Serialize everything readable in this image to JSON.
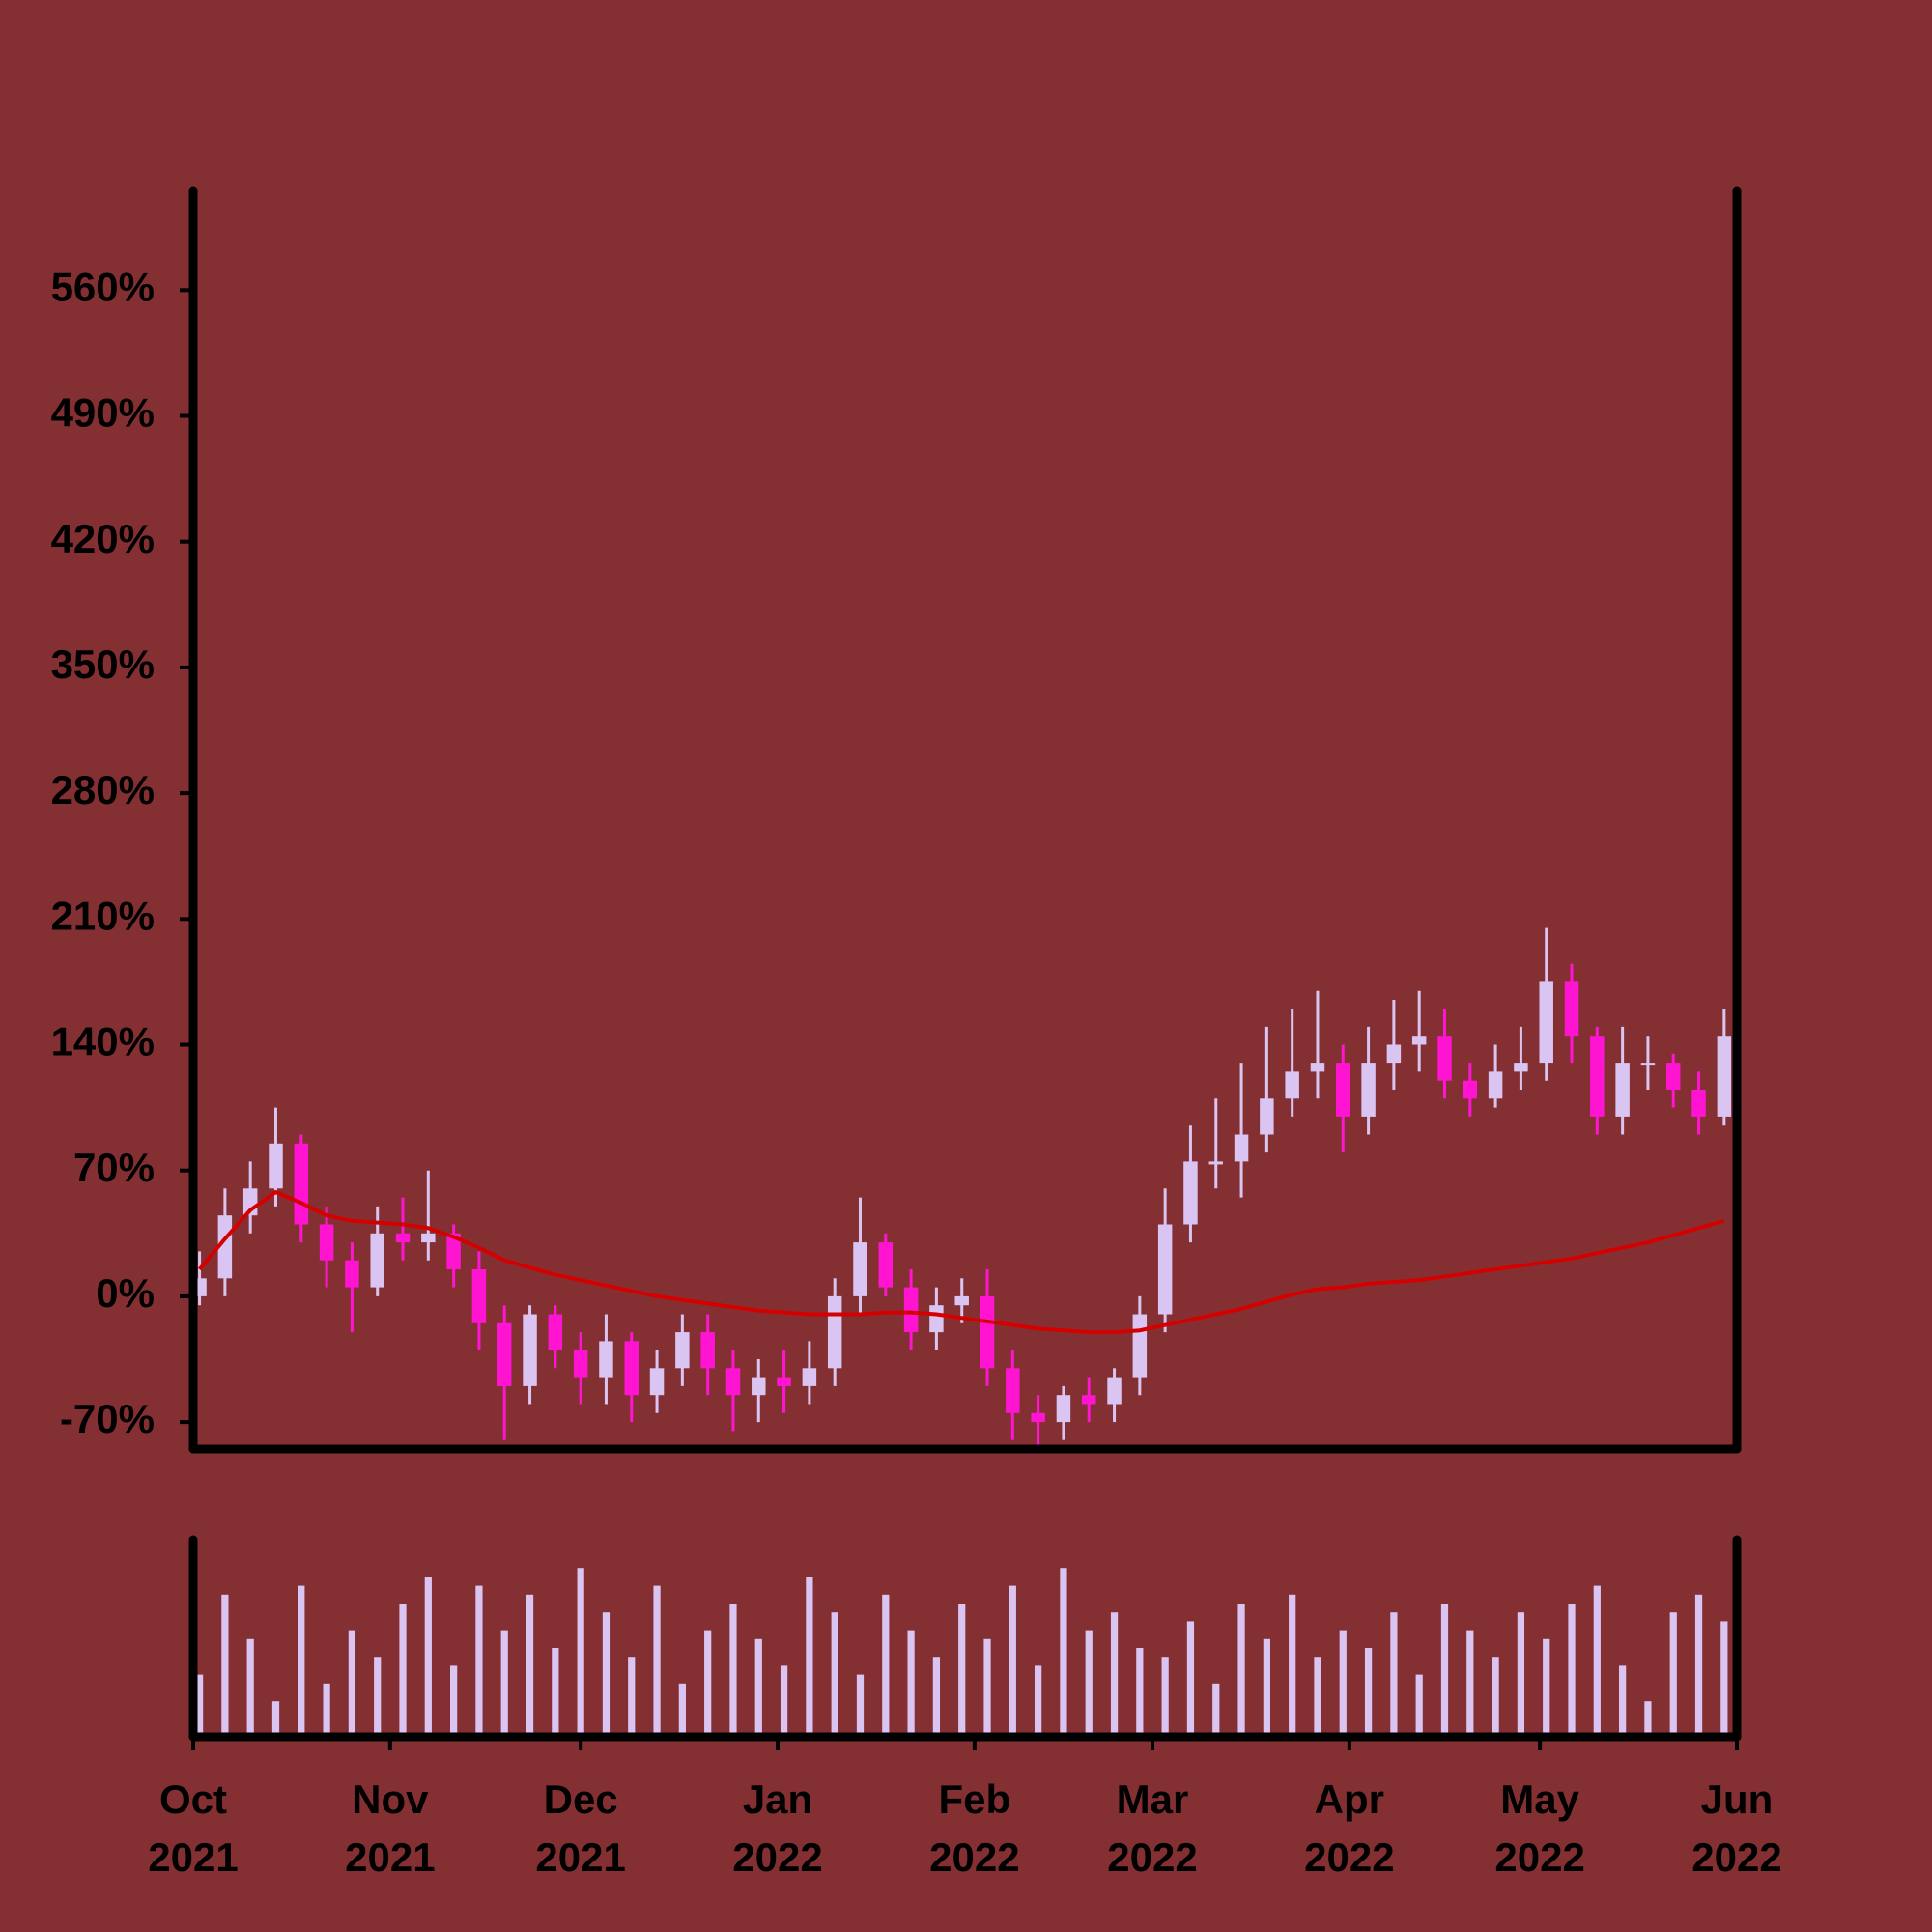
{
  "chart_data": {
    "type": "candlestick",
    "x": [
      "2021-10-02",
      "2021-10-06",
      "2021-10-10",
      "2021-10-14",
      "2021-10-18",
      "2021-10-22",
      "2021-10-26",
      "2021-10-30",
      "2021-11-03",
      "2021-11-07",
      "2021-11-11",
      "2021-11-15",
      "2021-11-19",
      "2021-11-23",
      "2021-11-27",
      "2021-12-01",
      "2021-12-05",
      "2021-12-09",
      "2021-12-13",
      "2021-12-17",
      "2021-12-21",
      "2021-12-25",
      "2021-12-29",
      "2022-01-02",
      "2022-01-06",
      "2022-01-10",
      "2022-01-14",
      "2022-01-18",
      "2022-01-22",
      "2022-01-26",
      "2022-01-30",
      "2022-02-03",
      "2022-02-07",
      "2022-02-11",
      "2022-02-15",
      "2022-02-19",
      "2022-02-23",
      "2022-02-27",
      "2022-03-03",
      "2022-03-07",
      "2022-03-11",
      "2022-03-15",
      "2022-03-19",
      "2022-03-23",
      "2022-03-27",
      "2022-03-31",
      "2022-04-04",
      "2022-04-08",
      "2022-04-12",
      "2022-04-16",
      "2022-04-20",
      "2022-04-24",
      "2022-04-28",
      "2022-05-02",
      "2022-05-06",
      "2022-05-10",
      "2022-05-14",
      "2022-05-18",
      "2022-05-22",
      "2022-05-26",
      "2022-05-30"
    ],
    "open": [
      0,
      10,
      45,
      60,
      85,
      40,
      20,
      5,
      35,
      30,
      35,
      15,
      -15,
      -50,
      -10,
      -30,
      -45,
      -25,
      -55,
      -40,
      -20,
      -40,
      -55,
      -45,
      -50,
      -40,
      0,
      30,
      5,
      -20,
      -5,
      0,
      -40,
      -65,
      -70,
      -55,
      -60,
      -45,
      -10,
      40,
      75,
      75,
      90,
      110,
      125,
      130,
      100,
      130,
      140,
      145,
      120,
      110,
      125,
      130,
      175,
      145,
      100,
      130,
      130,
      115,
      100
    ],
    "close": [
      10,
      45,
      60,
      85,
      40,
      20,
      5,
      35,
      30,
      35,
      15,
      -15,
      -50,
      -10,
      -30,
      -45,
      -25,
      -55,
      -40,
      -20,
      -40,
      -55,
      -45,
      -50,
      -40,
      0,
      30,
      5,
      -20,
      -5,
      0,
      -40,
      -65,
      -70,
      -55,
      -60,
      -45,
      -10,
      40,
      75,
      75,
      90,
      110,
      125,
      130,
      100,
      130,
      140,
      145,
      120,
      110,
      125,
      130,
      175,
      145,
      100,
      130,
      130,
      115,
      100,
      145
    ],
    "high": [
      25,
      60,
      75,
      105,
      90,
      50,
      30,
      50,
      55,
      70,
      40,
      25,
      -5,
      -5,
      -5,
      -20,
      -10,
      -20,
      -30,
      -10,
      -10,
      -30,
      -35,
      -30,
      -25,
      10,
      55,
      35,
      15,
      5,
      10,
      15,
      -30,
      -55,
      -50,
      -45,
      -40,
      0,
      60,
      95,
      110,
      130,
      150,
      160,
      170,
      140,
      150,
      165,
      170,
      160,
      130,
      140,
      150,
      205,
      185,
      150,
      150,
      145,
      135,
      125,
      160
    ],
    "low": [
      -5,
      0,
      35,
      50,
      30,
      5,
      -20,
      0,
      20,
      20,
      5,
      -30,
      -80,
      -60,
      -40,
      -60,
      -60,
      -70,
      -65,
      -50,
      -55,
      -75,
      -70,
      -65,
      -60,
      -50,
      -10,
      0,
      -30,
      -30,
      -15,
      -50,
      -80,
      -85,
      -80,
      -70,
      -70,
      -55,
      -20,
      30,
      60,
      55,
      80,
      100,
      110,
      80,
      90,
      115,
      125,
      110,
      100,
      105,
      115,
      120,
      130,
      90,
      90,
      115,
      105,
      90,
      95
    ],
    "volume": [
      35,
      80,
      55,
      20,
      85,
      30,
      60,
      45,
      75,
      90,
      40,
      85,
      60,
      80,
      50,
      95,
      70,
      45,
      85,
      30,
      60,
      75,
      55,
      40,
      90,
      70,
      35,
      80,
      60,
      45,
      75,
      55,
      85,
      40,
      95,
      60,
      70,
      50,
      45,
      65,
      30,
      75,
      55,
      80,
      45,
      60,
      50,
      70,
      35,
      75,
      60,
      45,
      70,
      55,
      75,
      85,
      40,
      20,
      70,
      80,
      65
    ],
    "vlim": [
      0,
      100
    ],
    "up_color": "#d9c4f2",
    "down_color": "#ff14d2",
    "overlay": {
      "color": "#d40000",
      "values": [
        15,
        32,
        48,
        58,
        52,
        45,
        42,
        41,
        40,
        38,
        33,
        27,
        20,
        16,
        12,
        9,
        6,
        3,
        0,
        -2,
        -4,
        -6,
        -8,
        -9,
        -10,
        -10,
        -10,
        -9,
        -9,
        -10,
        -12,
        -14,
        -16,
        -18,
        -19,
        -20,
        -20,
        -19,
        -16,
        -13,
        -10,
        -7,
        -3,
        1,
        4,
        5,
        7,
        8,
        9,
        11,
        13,
        15,
        17,
        19,
        21,
        24,
        27,
        30,
        34,
        38,
        42
      ]
    },
    "xlim": [
      "2021-10-01",
      "2022-06-01"
    ],
    "xticks": [
      {
        "value": "2021-10-01",
        "label": "Oct 2021"
      },
      {
        "value": "2021-11-01",
        "label": "Nov 2021"
      },
      {
        "value": "2021-12-01",
        "label": "Dec 2021"
      },
      {
        "value": "2022-01-01",
        "label": "Jan 2022"
      },
      {
        "value": "2022-02-01",
        "label": "Feb 2022"
      },
      {
        "value": "2022-03-01",
        "label": "Mar 2022"
      },
      {
        "value": "2022-04-01",
        "label": "Apr 2022"
      },
      {
        "value": "2022-05-01",
        "label": "May 2022"
      },
      {
        "value": "2022-06-01",
        "label": "Jun 2022"
      }
    ],
    "ylim": [
      -85,
      615
    ],
    "yticks": [
      {
        "value": -70,
        "label": "-70%"
      },
      {
        "value": 0,
        "label": "0%"
      },
      {
        "value": 70,
        "label": "70%"
      },
      {
        "value": 140,
        "label": "140%"
      },
      {
        "value": 210,
        "label": "210%"
      },
      {
        "value": 280,
        "label": "280%"
      },
      {
        "value": 350,
        "label": "350%"
      },
      {
        "value": 420,
        "label": "420%"
      },
      {
        "value": 490,
        "label": "490%"
      },
      {
        "value": 560,
        "label": "560%"
      }
    ]
  }
}
